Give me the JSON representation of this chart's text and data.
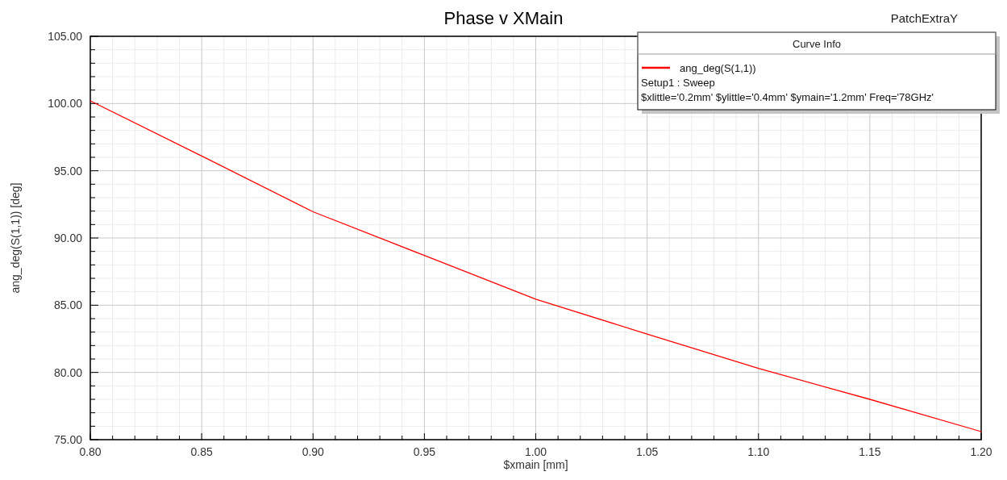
{
  "chart_data": {
    "type": "line",
    "title": "Phase v XMain",
    "xlabel": "$xmain [mm]",
    "ylabel": "ang_deg(S(1,1)) [deg]",
    "legend_title": "Curve Info",
    "legend": "top right",
    "grid": true,
    "x": [
      0.8,
      0.85,
      0.9,
      0.95,
      1.0,
      1.05,
      1.1,
      1.15,
      1.2
    ],
    "series": [
      {
        "name": "ang_deg(S(1,1))",
        "color": "#ff0000",
        "values": [
          100.2,
          96.1,
          91.95,
          88.7,
          85.45,
          82.85,
          80.3,
          78.0,
          75.6
        ]
      }
    ],
    "xlim": [
      0.8,
      1.2
    ],
    "xticks": [
      {
        "value": 0.8,
        "label": "0.80"
      },
      {
        "value": 0.85,
        "label": "0.85"
      },
      {
        "value": 0.9,
        "label": "0.90"
      },
      {
        "value": 0.95,
        "label": "0.95"
      },
      {
        "value": 1.0,
        "label": "1.00"
      },
      {
        "value": 1.05,
        "label": "1.05"
      },
      {
        "value": 1.1,
        "label": "1.10"
      },
      {
        "value": 1.15,
        "label": "1.15"
      },
      {
        "value": 1.2,
        "label": "1.20"
      }
    ],
    "ylim": [
      75,
      105
    ],
    "yticks": [
      {
        "value": 75,
        "label": "75.00"
      },
      {
        "value": 80,
        "label": "80.00"
      },
      {
        "value": 85,
        "label": "85.00"
      },
      {
        "value": 90,
        "label": "90.00"
      },
      {
        "value": 95,
        "label": "95.00"
      },
      {
        "value": 100,
        "label": "100.00"
      },
      {
        "value": 105,
        "label": "105.00"
      }
    ],
    "annotations": [
      "PatchExtraY",
      "Setup1 : Sweep",
      "$xlittle='0.2mm' $ylittle='0.4mm' $ymain='1.2mm' Freq='78GHz'"
    ]
  }
}
